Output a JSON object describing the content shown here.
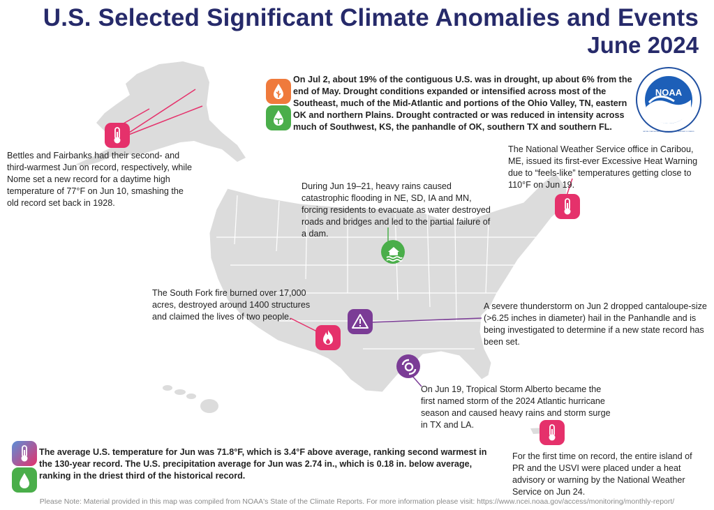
{
  "title": {
    "line1": "U.S. Selected Significant Climate Anomalies and Events",
    "line2": "June 2024"
  },
  "logo": {
    "text": "NOAA",
    "ring_text": "NATIONAL OCEANIC AND ATMOSPHERIC ADMINISTRATION · U.S. DEPARTMENT OF COMMERCE"
  },
  "annotations": {
    "drought": "On Jul 2, about 19% of the contiguous U.S. was in drought, up about 6% from the end of May. Drought conditions expanded or intensified across most of the Southeast, much of the Mid-Atlantic and portions of the Ohio Valley, TN, eastern OK and northern Plains. Drought contracted or was reduced in intensity across much of Southwest, KS, the panhandle of OK, southern TX and southern FL.",
    "alaska": "Bettles and Fairbanks had their second- and third-warmest Jun on record, respectively, while Nome set a new record for a daytime high temperature of 77°F on Jun 10, smashing the old record set back in 1928.",
    "maine": "The National Weather Service office in Caribou, ME, issued its first-ever Excessive Heat Warning due to “feels-like” temperatures getting close to 110°F on Jun 19.",
    "flood": "During Jun 19–21, heavy rains caused catastrophic flooding in NE, SD, IA and MN, forcing residents to evacuate as water destroyed roads and bridges and led to the partial failure of a dam.",
    "fire": "The South Fork fire burned over 17,000 acres, destroyed around 1400 structures and claimed the lives of two people.",
    "hail": "A severe thunderstorm on Jun 2 dropped cantaloupe-size (>6.25 inches in diameter) hail in the Panhandle and is being investigated to determine if a new state record has been set.",
    "storm": "On Jun 19, Tropical Storm Alberto became the first named storm of the 2024 Atlantic hurricane season and caused heavy rains and storm surge in TX and LA.",
    "pr": "For the first time on record, the entire island of PR and the USVI were placed under a heat advisory or warning by the National Weather Service on Jun 24.",
    "national": "The average U.S. temperature for Jun was 71.8°F, which is 3.4°F above average, ranking second warmest in the 130-year record. The U.S. precipitation average for Jun was 2.74 in., which is 0.18 in. below average, ranking in the driest third of the historical record."
  },
  "footer": "Please Note: Material provided in this map was compiled from NOAA's State of the Climate Reports. For more information please visit: https://www.ncei.noaa.gov/access/monitoring/monthly-report/",
  "icons": {
    "heat": "thermometer-icon",
    "drought": "drought-icon",
    "wet": "wet-plant-icon",
    "flood": "flood-icon",
    "fire": "fire-icon",
    "hail": "warning-icon",
    "storm": "tropical-storm-icon",
    "precip": "raindrop-icon"
  },
  "colors": {
    "title": "#262a6a",
    "heat": "#e5316b",
    "drought": "#ef7a3c",
    "wet": "#4aae4a",
    "fire": "#e5316b",
    "severe": "#7b3c96",
    "map": "#dcdcdc"
  }
}
